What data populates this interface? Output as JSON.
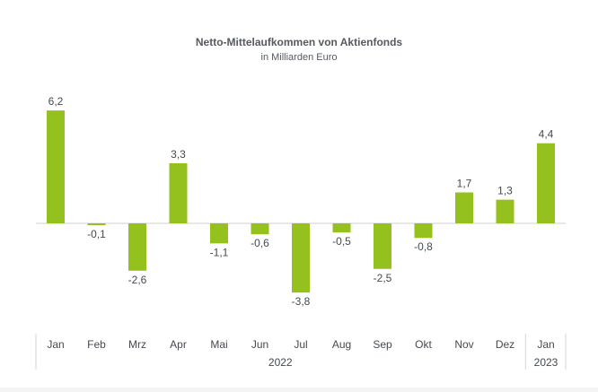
{
  "chart_data": {
    "type": "bar",
    "title": "Netto-Mittelaufkommen von Aktienfonds",
    "subtitle": "in Milliarden Euro",
    "categories": [
      "Jan",
      "Feb",
      "Mrz",
      "Apr",
      "Mai",
      "Jun",
      "Jul",
      "Aug",
      "Sep",
      "Okt",
      "Nov",
      "Dez",
      "Jan"
    ],
    "values": [
      6.2,
      -0.1,
      -2.6,
      3.3,
      -1.1,
      -0.6,
      -3.8,
      -0.5,
      -2.5,
      -0.8,
      1.7,
      1.3,
      4.4
    ],
    "value_labels": [
      "6,2",
      "-0,1",
      "-2,6",
      "3,3",
      "-1,1",
      "-0,6",
      "-3,8",
      "-0,5",
      "-2,5",
      "-0,8",
      "1,7",
      "1,3",
      "4,4"
    ],
    "year_groups": [
      {
        "label": "2022",
        "count": 12
      },
      {
        "label": "2023",
        "count": 1
      }
    ],
    "xlabel": "",
    "ylabel": "",
    "grid": false,
    "legend": "none",
    "bar_color": "#95c11f"
  }
}
